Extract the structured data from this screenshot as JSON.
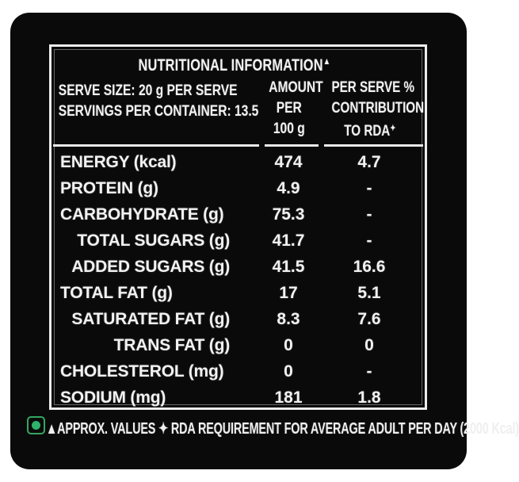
{
  "colors": {
    "page_bg": "#ffffff",
    "label_bg": "#0a0a0a",
    "text": "#f2f2f2",
    "border": "#ececec",
    "veg_green": "#2fb269"
  },
  "table": {
    "title": "NUTRITIONAL INFORMATION",
    "title_mark": "▲",
    "serve_size_line": "SERVE SIZE: 20 g PER SERVE",
    "servings_line": "SERVINGS PER CONTAINER: 13.5",
    "col2_header_lines": [
      "AMOUNT",
      "PER",
      "100 g"
    ],
    "col3_header_lines": [
      "PER SERVE %",
      "CONTRIBUTION",
      "TO RDA"
    ],
    "col3_header_mark": "✦",
    "rows": [
      {
        "label": "ENERGY (kcal)",
        "indent": false,
        "per100": "474",
        "rda": "4.7"
      },
      {
        "label": "PROTEIN (g)",
        "indent": false,
        "per100": "4.9",
        "rda": "-"
      },
      {
        "label": "CARBOHYDRATE (g)",
        "indent": false,
        "per100": "75.3",
        "rda": "-"
      },
      {
        "label": "TOTAL SUGARS (g)",
        "indent": true,
        "per100": "41.7",
        "rda": "-"
      },
      {
        "label": "ADDED SUGARS (g)",
        "indent": true,
        "per100": "41.5",
        "rda": "16.6"
      },
      {
        "label": "TOTAL FAT (g)",
        "indent": false,
        "per100": "17",
        "rda": "5.1"
      },
      {
        "label": "SATURATED FAT (g)",
        "indent": true,
        "per100": "8.3",
        "rda": "7.6"
      },
      {
        "label": "TRANS FAT (g)",
        "indent": true,
        "per100": "0",
        "rda": "0"
      },
      {
        "label": "CHOLESTEROL (mg)",
        "indent": false,
        "per100": "0",
        "rda": "-"
      },
      {
        "label": "SODIUM (mg)",
        "indent": false,
        "per100": "181",
        "rda": "1.8"
      }
    ]
  },
  "footer": {
    "text": "▲APPROX. VALUES ✦ RDA REQUIREMENT FOR AVERAGE ADULT PER DAY (2000 Kcal)",
    "veg_mark": "vegetarian-symbol"
  }
}
